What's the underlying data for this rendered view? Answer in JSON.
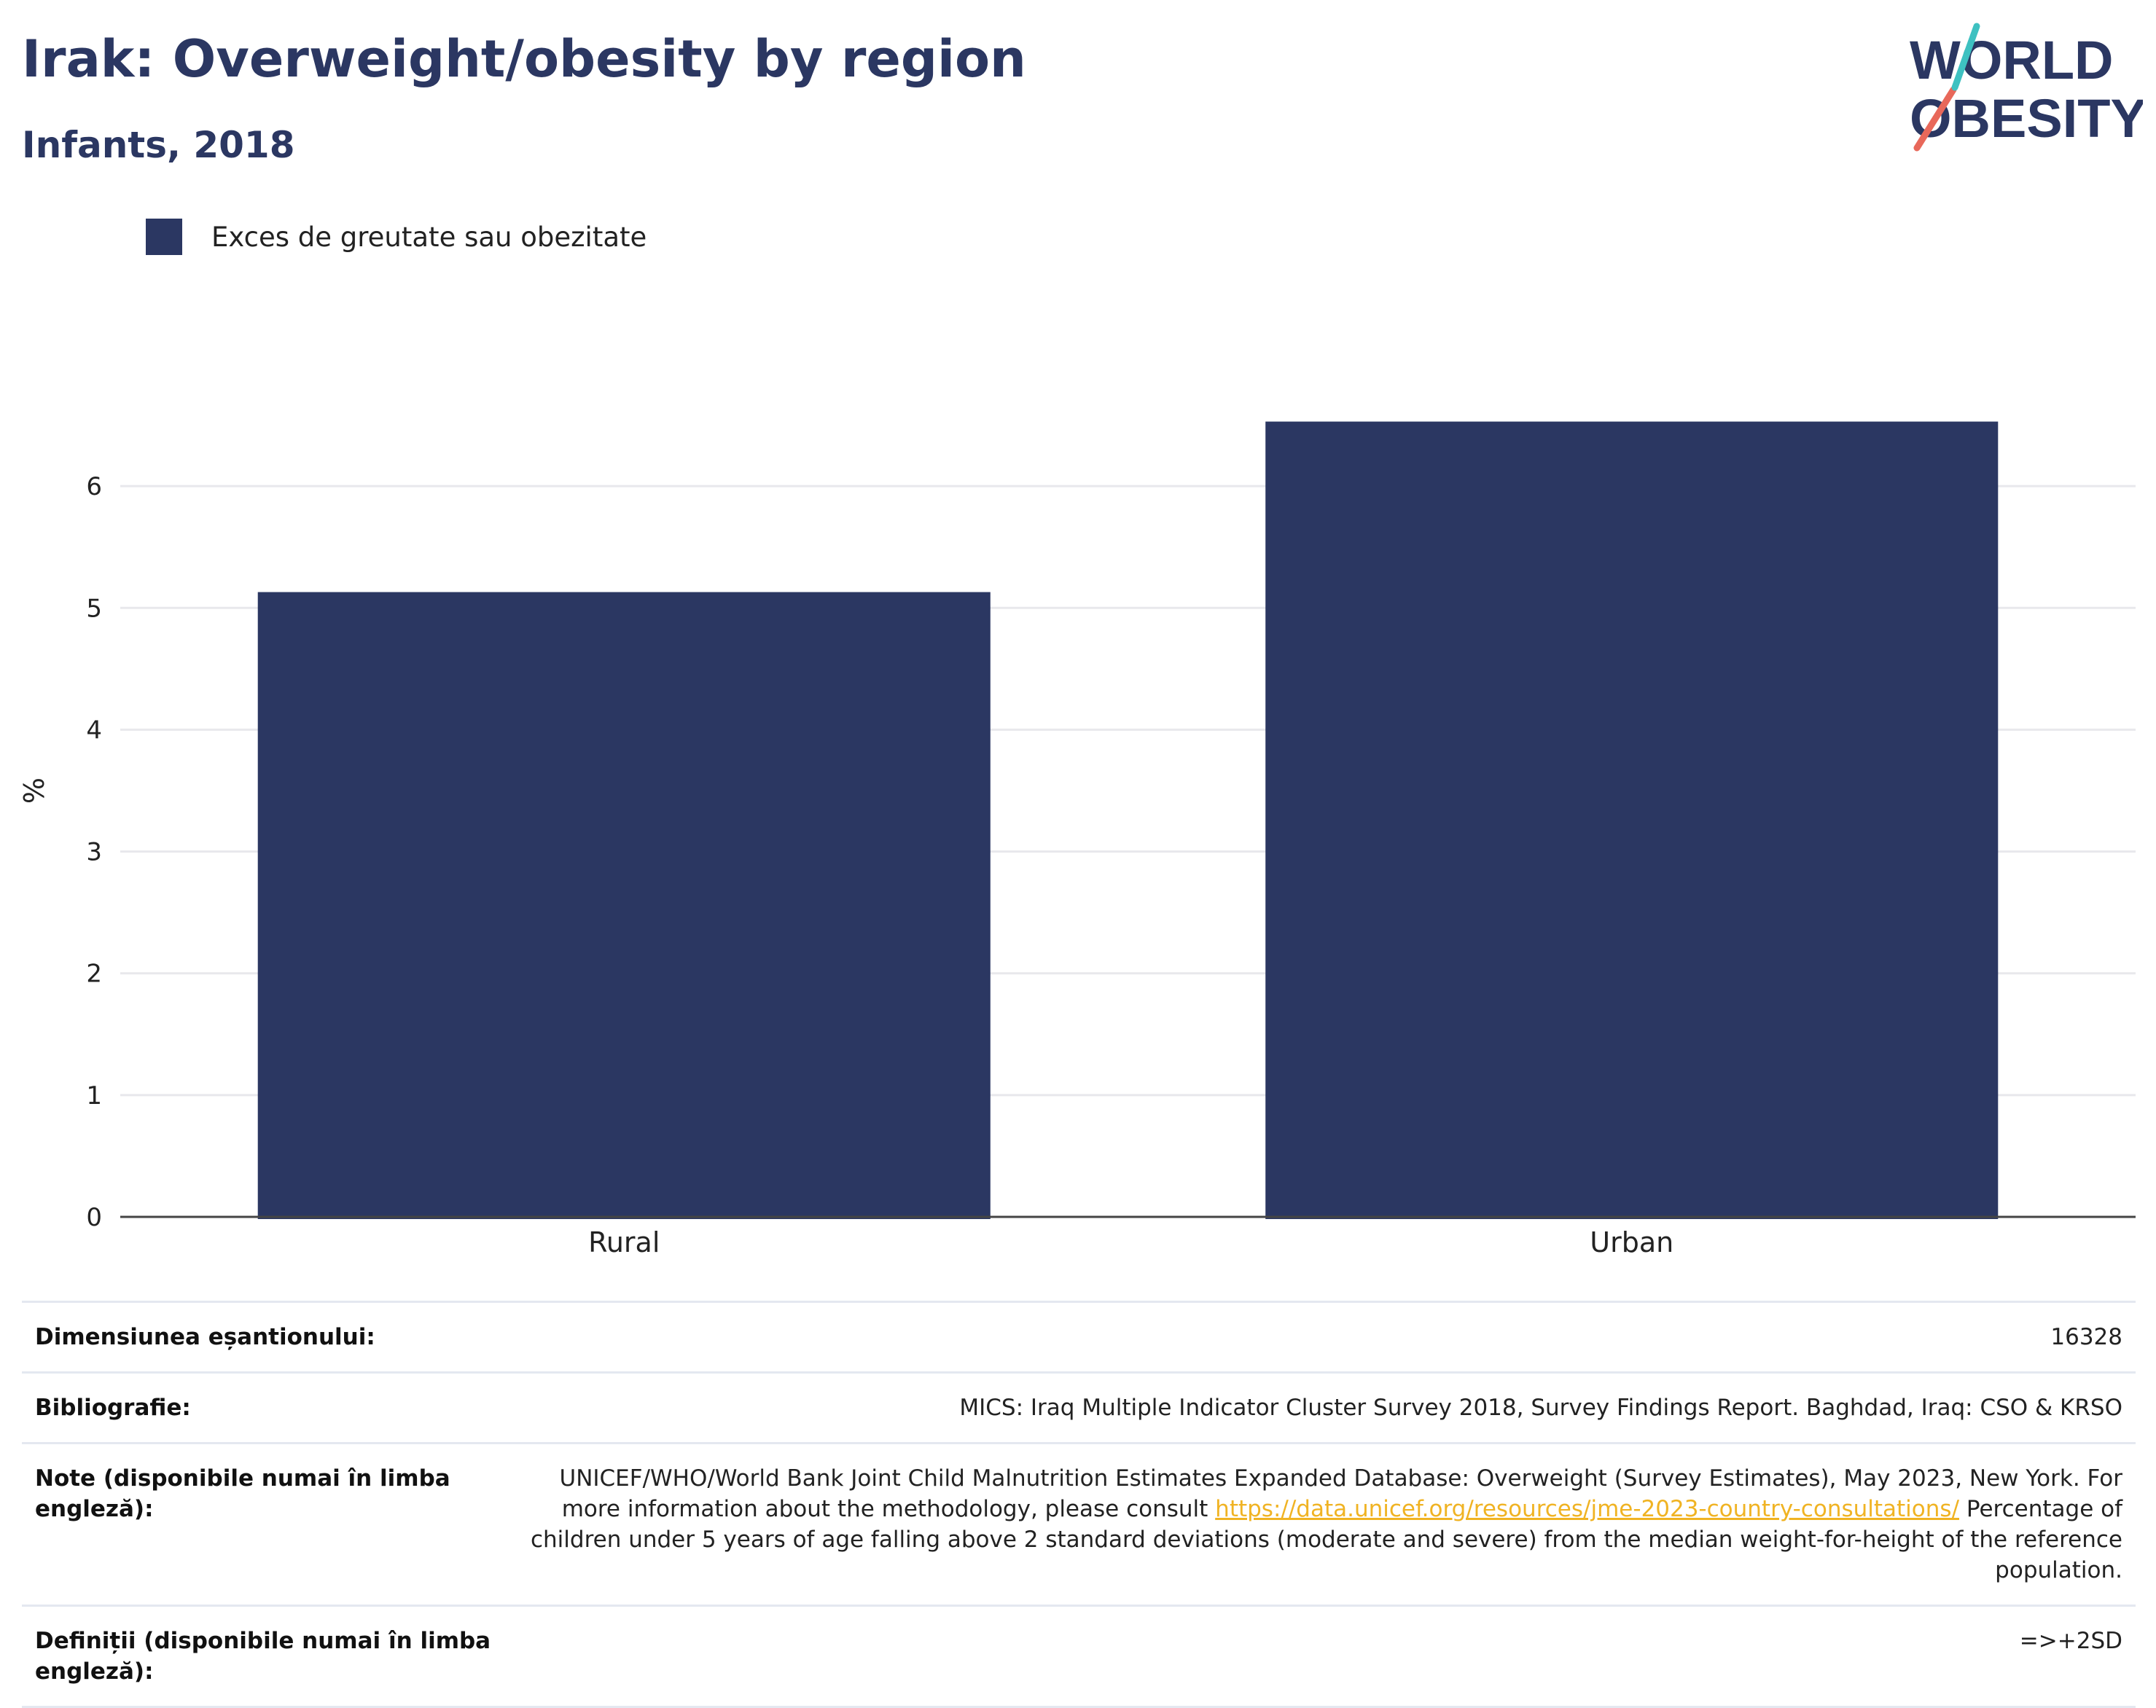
{
  "header": {
    "title": "Irak: Overweight/obesity by region",
    "subtitle": "Infants, 2018"
  },
  "logo": {
    "line1": "WORLD",
    "line2": "OBESITY",
    "colors": {
      "text": "#2b3762",
      "slash_red": "#e8685a",
      "slash_teal": "#3ec1c1"
    }
  },
  "legend": {
    "items": [
      {
        "label": "Exces de greutate sau obezitate",
        "color": "#2b3762"
      }
    ]
  },
  "chart_data": {
    "type": "bar",
    "categories": [
      "Rural",
      "Urban"
    ],
    "series": [
      {
        "name": "Exces de greutate sau obezitate",
        "values": [
          5.13,
          6.53
        ],
        "color": "#2b3762"
      }
    ],
    "ylabel": "%",
    "xlabel": "",
    "ylim": [
      0,
      7
    ],
    "yticks": [
      0,
      1,
      2,
      3,
      4,
      5,
      6
    ],
    "grid": true
  },
  "info": {
    "rows": [
      {
        "key": "Dimensiunea eșantionului:",
        "value": "16328"
      },
      {
        "key": "Bibliografie:",
        "value": "MICS: Iraq Multiple Indicator Cluster Survey 2018, Survey Findings Report. Baghdad, Iraq: CSO & KRSO"
      },
      {
        "key": "Note (disponibile numai în limba engleză):",
        "value_pre": "UNICEF/WHO/World Bank Joint Child Malnutrition Estimates Expanded Database: Overweight (Survey Estimates), May 2023, New York. For more information about the methodology, please consult ",
        "value_link": "https://data.unicef.org/resources/jme-2023-country-consultations/",
        "value_post": " Percentage of children under 5 years of age falling above 2 standard deviations (moderate and severe) from the median weight-for-height of the reference population."
      },
      {
        "key": "Definiții (disponibile numai în limba engleză):",
        "value": "=>+2SD"
      }
    ]
  }
}
